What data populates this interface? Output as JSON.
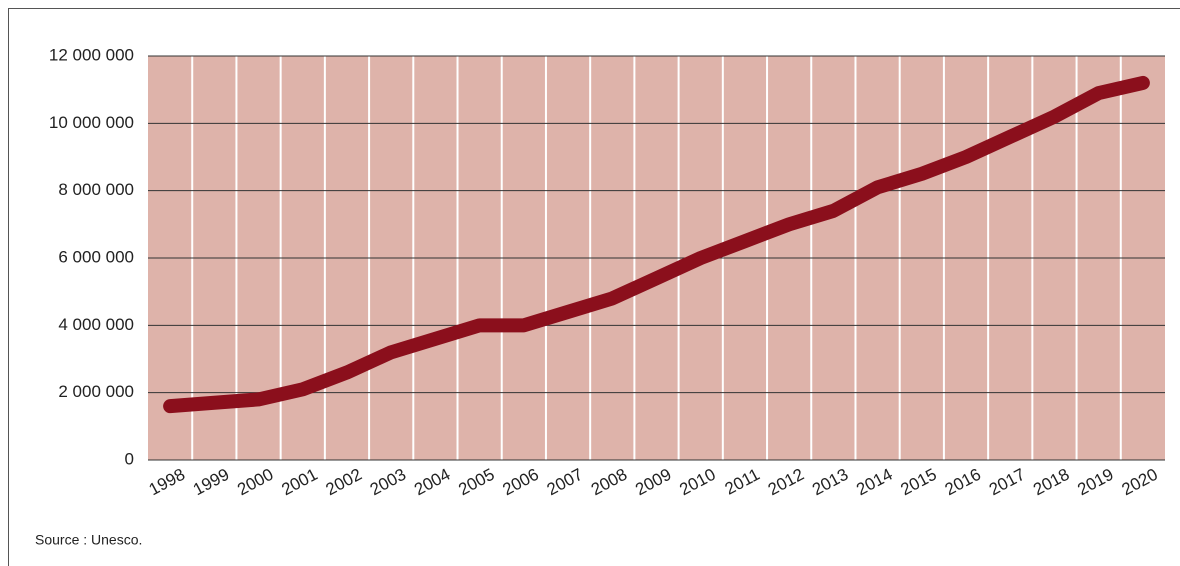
{
  "chart_data": {
    "type": "line",
    "source": "Source : Unesco.",
    "categories": [
      "1998",
      "1999",
      "2000",
      "2001",
      "2002",
      "2003",
      "2004",
      "2005",
      "2006",
      "2007",
      "2008",
      "2009",
      "2010",
      "2011",
      "2012",
      "2013",
      "2014",
      "2015",
      "2016",
      "2017",
      "2018",
      "2019",
      "2020"
    ],
    "series": [
      {
        "color": "#8b0f1c",
        "values": [
          1600000,
          1700000,
          1800000,
          2100000,
          2600000,
          3200000,
          3600000,
          4000000,
          4000000,
          4400000,
          4800000,
          5400000,
          6000000,
          6500000,
          7000000,
          7400000,
          8100000,
          8500000,
          9000000,
          9600000,
          10200000,
          10900000,
          11200000
        ]
      }
    ],
    "ylim": [
      0,
      12000000
    ],
    "yticks": [
      0,
      {
        "value": 2000000,
        "label": "2 000 000"
      },
      {
        "value": 4000000,
        "label": "4 000 000"
      },
      {
        "value": 6000000,
        "label": "6 000 000"
      },
      {
        "value": 8000000,
        "label": "8 000 000"
      },
      {
        "value": 10000000,
        "label": "10 000 000"
      },
      {
        "value": 12000000,
        "label": "12 000 000"
      }
    ],
    "grid": true,
    "background": "#deb3aa"
  }
}
